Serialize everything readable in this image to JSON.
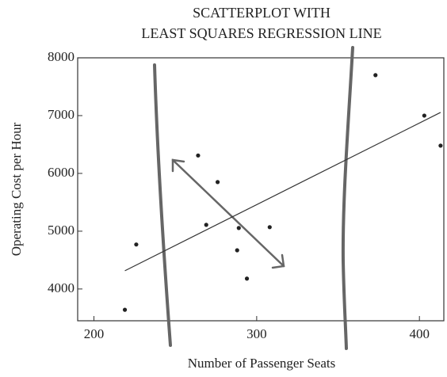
{
  "chart_data": {
    "type": "scatter",
    "title": [
      "SCATTERPLOT WITH",
      "LEAST SQUARES REGRESSION LINE"
    ],
    "x_label": "Number of Passenger Seats",
    "y_label": "Operating Cost per Hour",
    "x": [
      219,
      226,
      264,
      276,
      269,
      289,
      288,
      294,
      308,
      373,
      403,
      413
    ],
    "values": [
      3640,
      4770,
      6310,
      5850,
      5110,
      5055,
      4670,
      4180,
      5070,
      7700,
      7000,
      6480
    ],
    "color": "#222222",
    "regression_line": {
      "x": [
        219,
        413
      ],
      "values": [
        4315,
        7055
      ]
    },
    "xlim": [
      190,
      415
    ],
    "ylim": [
      3450,
      8000
    ],
    "xticks": [
      200,
      300,
      400
    ],
    "yticks": [
      4000,
      5000,
      6000,
      7000,
      8000
    ],
    "grid": false
  }
}
